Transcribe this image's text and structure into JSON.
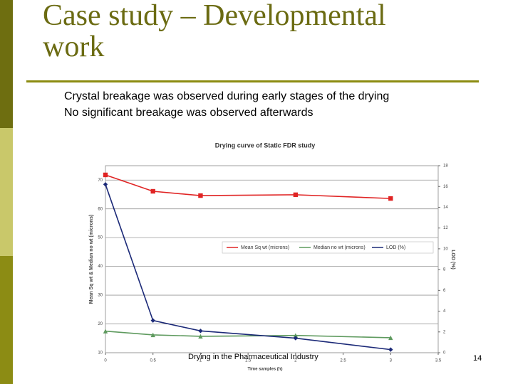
{
  "slide": {
    "title": "Case study – Developmental work",
    "bullets": [
      "Crystal breakage was observed during early stages of the drying",
      "No significant breakage was observed afterwards"
    ],
    "footer": "Drying in the Pharmaceutical Industry",
    "page_number": "14"
  },
  "chart_data": {
    "type": "line",
    "title": "Drying curve of Static FDR study",
    "x_label": "Time samples (h)",
    "y_label": "Mean Sq wt  & Median no wt (microns)",
    "y2_label": "LOD (%)",
    "x": [
      0,
      0.5,
      1,
      2,
      3
    ],
    "series": [
      {
        "name": "Mean Sq wt (microns)",
        "color": "#e02424",
        "marker": "square",
        "values": [
          71.8,
          66.1,
          64.6,
          64.9,
          63.6
        ]
      },
      {
        "name": "Median no wt (microns)",
        "color": "#5e9a5e",
        "marker": "triangle",
        "values": [
          17.5,
          16.2,
          15.7,
          16,
          15.2
        ]
      },
      {
        "name": "LOD (%)",
        "color": "#1c2a78",
        "marker": "diamond",
        "axis": "y2",
        "values": [
          16.2,
          3.1,
          2.1,
          1.4,
          0.3
        ]
      }
    ],
    "xlim": [
      0,
      3.5
    ],
    "xticks": [
      0,
      0.5,
      1,
      1.5,
      2,
      2.5,
      3,
      3.5
    ],
    "ylim": [
      10,
      75
    ],
    "yticks": [
      10,
      20,
      30,
      40,
      50,
      60,
      70
    ],
    "y2lim": [
      0,
      18
    ],
    "y2ticks": [
      0,
      2,
      4,
      6,
      8,
      10,
      12,
      14,
      16,
      18
    ],
    "grid": true,
    "legend": "middle-right"
  }
}
